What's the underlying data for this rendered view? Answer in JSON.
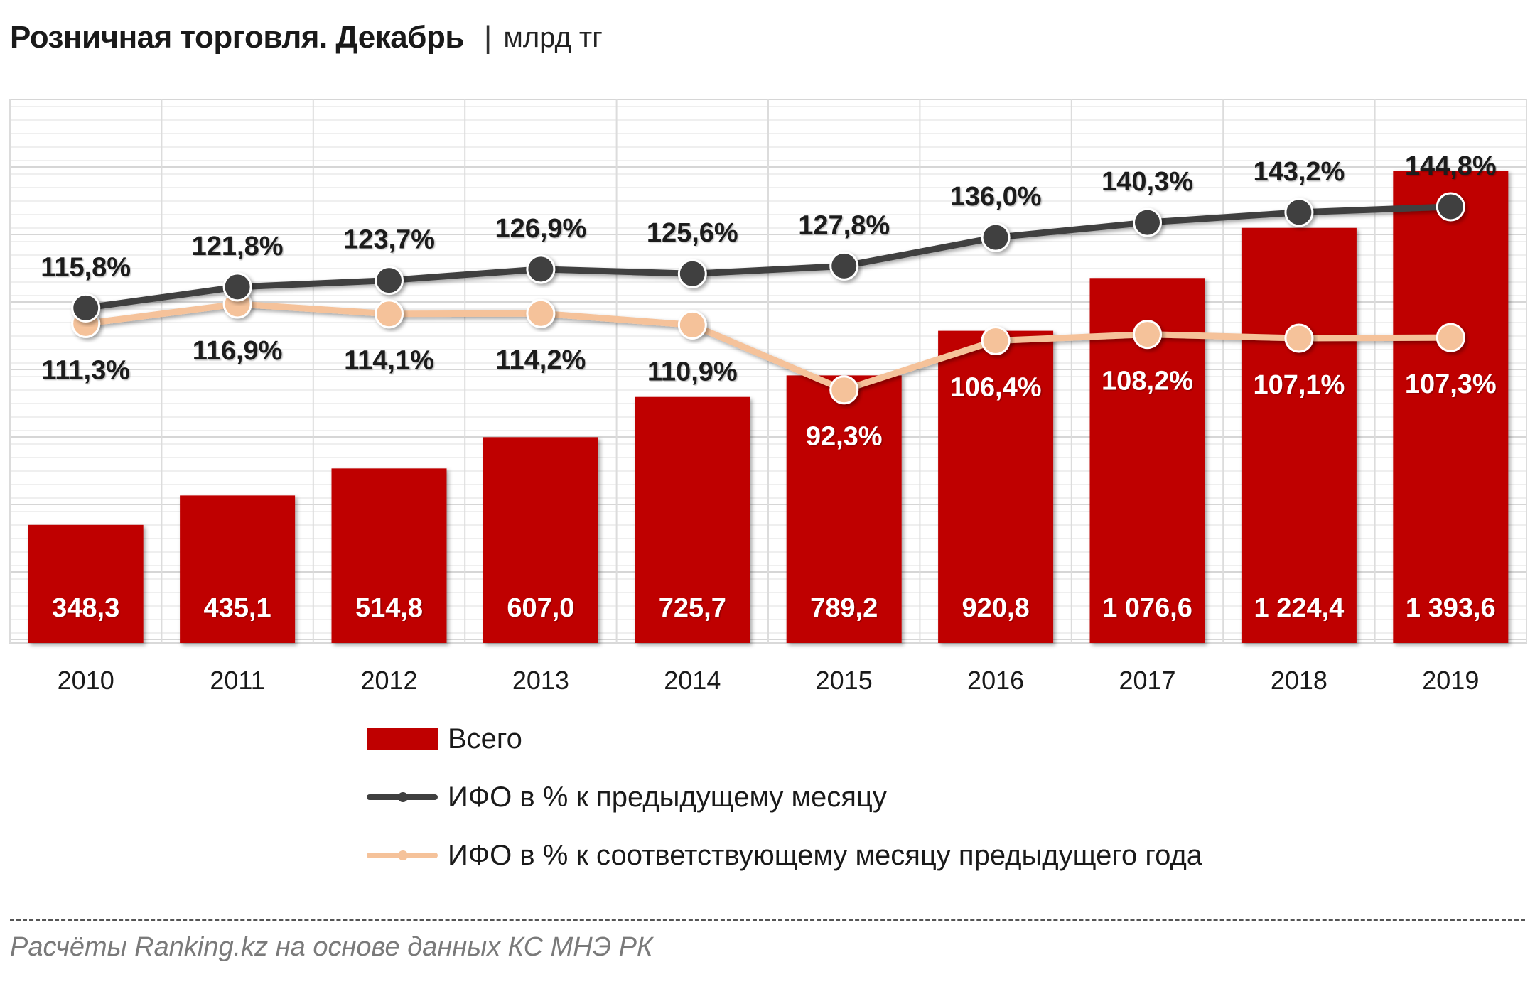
{
  "header": {
    "title": "Розничная торговля. Декабрь",
    "separator": "|",
    "unit": "млрд тг"
  },
  "chart_data": {
    "type": "bar",
    "categories": [
      "2010",
      "2011",
      "2012",
      "2013",
      "2014",
      "2015",
      "2016",
      "2017",
      "2018",
      "2019"
    ],
    "series": [
      {
        "name": "Всего",
        "type": "bar",
        "color": "#bf0000",
        "values": [
          348.3,
          435.1,
          514.8,
          607.0,
          725.7,
          789.2,
          920.8,
          1076.6,
          1224.4,
          1393.6
        ],
        "labels": [
          "348,3",
          "435,1",
          "514,8",
          "607,0",
          "725,7",
          "789,2",
          "920,8",
          "1 076,6",
          "1 224,4",
          "1 393,6"
        ]
      },
      {
        "name": "ИФО в % к предыдущему месяцу",
        "type": "line",
        "color": "#3f3f3f",
        "values": [
          115.8,
          121.8,
          123.7,
          126.9,
          125.6,
          127.8,
          136.0,
          140.3,
          143.2,
          144.8
        ],
        "labels": [
          "115,8%",
          "121,8%",
          "123,7%",
          "126,9%",
          "125,6%",
          "127,8%",
          "136,0%",
          "140,3%",
          "143,2%",
          "144,8%"
        ]
      },
      {
        "name": "ИФО в % к соответствующему месяцу предыдущего года",
        "type": "line",
        "color": "#f5c29a",
        "values": [
          111.3,
          116.9,
          114.1,
          114.2,
          110.9,
          92.3,
          106.4,
          108.2,
          107.1,
          107.3
        ],
        "labels": [
          "111,3%",
          "116,9%",
          "114,1%",
          "114,2%",
          "110,9%",
          "92,3%",
          "106,4%",
          "108,2%",
          "107,1%",
          "107,3%"
        ]
      }
    ],
    "grid": true,
    "legend_position": "bottom"
  },
  "legend": {
    "items": [
      {
        "label": "Всего"
      },
      {
        "label": "ИФО в % к предыдущему месяцу"
      },
      {
        "label": "ИФО в % к соответствующему месяцу предыдущего года"
      }
    ]
  },
  "footer": {
    "source": "Расчёты Ranking.kz на основе данных КС МНЭ РК"
  }
}
